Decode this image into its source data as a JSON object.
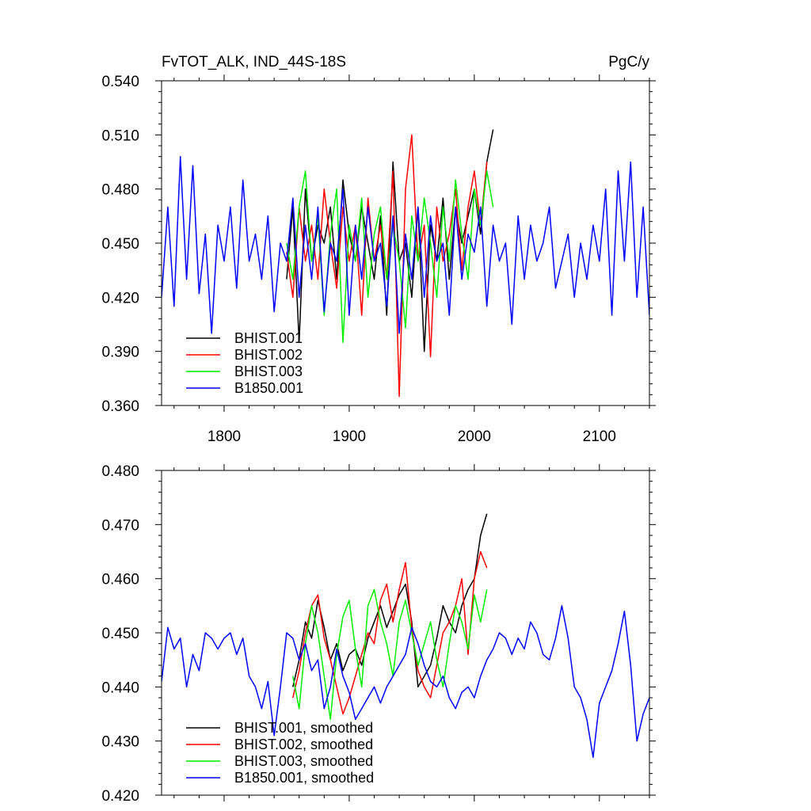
{
  "title_left": "FvTOT_ALK, IND_44S-18S",
  "title_right": "PgC/y",
  "chart_data": [
    {
      "type": "line",
      "xlim": [
        1750,
        2140
      ],
      "ylim": [
        0.36,
        0.54
      ],
      "x_ticks": [
        1800,
        1900,
        2000,
        2100
      ],
      "x_tick_labels": [
        "1800",
        "1900",
        "2000",
        "2100"
      ],
      "y_ticks": [
        0.36,
        0.39,
        0.42,
        0.45,
        0.48,
        0.51,
        0.54
      ],
      "y_tick_labels": [
        "0.360",
        "0.390",
        "0.420",
        "0.450",
        "0.480",
        "0.510",
        "0.540"
      ],
      "legend_position": "bottom-left",
      "series": [
        {
          "name": "BHIST.001",
          "color": "#000000",
          "x": [
            1850,
            1855,
            1860,
            1865,
            1870,
            1875,
            1880,
            1885,
            1890,
            1895,
            1900,
            1905,
            1910,
            1915,
            1920,
            1925,
            1930,
            1935,
            1940,
            1945,
            1950,
            1955,
            1960,
            1965,
            1970,
            1975,
            1980,
            1985,
            1990,
            1995,
            2000,
            2005,
            2010,
            2015
          ],
          "y": [
            0.43,
            0.47,
            0.395,
            0.48,
            0.44,
            0.46,
            0.45,
            0.47,
            0.43,
            0.485,
            0.455,
            0.44,
            0.47,
            0.45,
            0.43,
            0.465,
            0.41,
            0.495,
            0.44,
            0.45,
            0.42,
            0.47,
            0.39,
            0.46,
            0.44,
            0.475,
            0.43,
            0.47,
            0.45,
            0.465,
            0.48,
            0.455,
            0.495,
            0.513
          ]
        },
        {
          "name": "BHIST.002",
          "color": "#ff0000",
          "x": [
            1850,
            1855,
            1860,
            1865,
            1870,
            1875,
            1880,
            1885,
            1890,
            1895,
            1900,
            1905,
            1910,
            1915,
            1920,
            1925,
            1930,
            1935,
            1940,
            1945,
            1950,
            1955,
            1960,
            1965,
            1970,
            1975,
            1980,
            1985,
            1990,
            1995,
            2000,
            2005,
            2010
          ],
          "y": [
            0.445,
            0.42,
            0.47,
            0.44,
            0.46,
            0.43,
            0.48,
            0.45,
            0.425,
            0.47,
            0.44,
            0.46,
            0.41,
            0.475,
            0.44,
            0.46,
            0.43,
            0.49,
            0.365,
            0.48,
            0.51,
            0.44,
            0.46,
            0.387,
            0.47,
            0.44,
            0.455,
            0.48,
            0.435,
            0.47,
            0.49,
            0.46,
            0.495
          ]
        },
        {
          "name": "BHIST.003",
          "color": "#00ee00",
          "x": [
            1850,
            1855,
            1860,
            1865,
            1870,
            1875,
            1880,
            1885,
            1890,
            1895,
            1900,
            1905,
            1910,
            1915,
            1920,
            1925,
            1930,
            1935,
            1940,
            1945,
            1950,
            1955,
            1960,
            1965,
            1970,
            1975,
            1980,
            1985,
            1990,
            1995,
            2000,
            2005,
            2010,
            2015
          ],
          "y": [
            0.45,
            0.43,
            0.47,
            0.49,
            0.44,
            0.465,
            0.41,
            0.455,
            0.48,
            0.395,
            0.46,
            0.44,
            0.475,
            0.42,
            0.455,
            0.47,
            0.43,
            0.46,
            0.44,
            0.403,
            0.465,
            0.44,
            0.475,
            0.45,
            0.42,
            0.47,
            0.44,
            0.485,
            0.455,
            0.43,
            0.48,
            0.46,
            0.49,
            0.47
          ]
        },
        {
          "name": "B1850.001",
          "color": "#0000ff",
          "x": [
            1750,
            1755,
            1760,
            1765,
            1770,
            1775,
            1780,
            1785,
            1790,
            1795,
            1800,
            1805,
            1810,
            1815,
            1820,
            1825,
            1830,
            1835,
            1840,
            1845,
            1850,
            1855,
            1860,
            1865,
            1870,
            1875,
            1880,
            1885,
            1890,
            1895,
            1900,
            1905,
            1910,
            1915,
            1920,
            1925,
            1930,
            1935,
            1940,
            1945,
            1950,
            1955,
            1960,
            1965,
            1970,
            1975,
            1980,
            1985,
            1990,
            1995,
            2000,
            2005,
            2010,
            2015,
            2020,
            2025,
            2030,
            2035,
            2040,
            2045,
            2050,
            2055,
            2060,
            2065,
            2070,
            2075,
            2080,
            2085,
            2090,
            2095,
            2100,
            2105,
            2110,
            2115,
            2120,
            2125,
            2130,
            2135,
            2140
          ],
          "y": [
            0.42,
            0.47,
            0.415,
            0.498,
            0.43,
            0.493,
            0.422,
            0.455,
            0.4,
            0.46,
            0.44,
            0.47,
            0.425,
            0.485,
            0.44,
            0.455,
            0.43,
            0.465,
            0.412,
            0.45,
            0.44,
            0.475,
            0.42,
            0.46,
            0.43,
            0.47,
            0.412,
            0.45,
            0.44,
            0.48,
            0.41,
            0.46,
            0.43,
            0.47,
            0.44,
            0.45,
            0.415,
            0.465,
            0.4,
            0.455,
            0.43,
            0.47,
            0.42,
            0.465,
            0.44,
            0.45,
            0.41,
            0.47,
            0.43,
            0.455,
            0.445,
            0.47,
            0.415,
            0.46,
            0.44,
            0.45,
            0.405,
            0.465,
            0.43,
            0.46,
            0.44,
            0.45,
            0.47,
            0.425,
            0.44,
            0.455,
            0.42,
            0.45,
            0.43,
            0.46,
            0.44,
            0.48,
            0.41,
            0.49,
            0.44,
            0.495,
            0.42,
            0.47,
            0.41
          ]
        }
      ]
    },
    {
      "type": "line",
      "xlim": [
        1750,
        2140
      ],
      "ylim": [
        0.42,
        0.48
      ],
      "x_ticks": [
        1800,
        1900,
        2000,
        2100
      ],
      "x_tick_labels": [],
      "y_ticks": [
        0.42,
        0.43,
        0.44,
        0.45,
        0.46,
        0.47,
        0.48
      ],
      "y_tick_labels": [
        "0.420",
        "0.430",
        "0.440",
        "0.450",
        "0.460",
        "0.470",
        "0.480"
      ],
      "legend_position": "bottom-left",
      "series": [
        {
          "name": "BHIST.001, smoothed",
          "color": "#000000",
          "x": [
            1855,
            1860,
            1865,
            1870,
            1875,
            1880,
            1885,
            1890,
            1895,
            1900,
            1905,
            1910,
            1915,
            1920,
            1925,
            1930,
            1935,
            1940,
            1945,
            1950,
            1955,
            1960,
            1965,
            1970,
            1975,
            1980,
            1985,
            1990,
            1995,
            2000,
            2005,
            2010
          ],
          "y": [
            0.44,
            0.445,
            0.452,
            0.449,
            0.456,
            0.451,
            0.445,
            0.448,
            0.443,
            0.446,
            0.447,
            0.444,
            0.449,
            0.452,
            0.455,
            0.451,
            0.454,
            0.457,
            0.459,
            0.452,
            0.44,
            0.442,
            0.444,
            0.449,
            0.455,
            0.452,
            0.45,
            0.455,
            0.458,
            0.46,
            0.468,
            0.472
          ]
        },
        {
          "name": "BHIST.002, smoothed",
          "color": "#ff0000",
          "x": [
            1855,
            1860,
            1865,
            1870,
            1875,
            1880,
            1885,
            1890,
            1895,
            1900,
            1905,
            1910,
            1915,
            1920,
            1925,
            1930,
            1935,
            1940,
            1945,
            1950,
            1955,
            1960,
            1965,
            1970,
            1975,
            1980,
            1985,
            1990,
            1995,
            2000,
            2005,
            2010
          ],
          "y": [
            0.438,
            0.443,
            0.45,
            0.455,
            0.457,
            0.449,
            0.445,
            0.44,
            0.435,
            0.438,
            0.442,
            0.446,
            0.45,
            0.448,
            0.456,
            0.459,
            0.452,
            0.458,
            0.463,
            0.451,
            0.443,
            0.44,
            0.438,
            0.444,
            0.45,
            0.452,
            0.455,
            0.46,
            0.446,
            0.46,
            0.465,
            0.462
          ]
        },
        {
          "name": "BHIST.003, smoothed",
          "color": "#00ee00",
          "x": [
            1855,
            1860,
            1865,
            1870,
            1875,
            1880,
            1885,
            1890,
            1895,
            1900,
            1905,
            1910,
            1915,
            1920,
            1925,
            1930,
            1935,
            1940,
            1945,
            1950,
            1955,
            1960,
            1965,
            1970,
            1975,
            1980,
            1985,
            1990,
            1995,
            2000,
            2005,
            2010
          ],
          "y": [
            0.442,
            0.436,
            0.448,
            0.455,
            0.45,
            0.442,
            0.434,
            0.446,
            0.453,
            0.456,
            0.447,
            0.44,
            0.455,
            0.458,
            0.452,
            0.448,
            0.442,
            0.452,
            0.456,
            0.45,
            0.444,
            0.448,
            0.452,
            0.445,
            0.44,
            0.448,
            0.455,
            0.452,
            0.447,
            0.457,
            0.452,
            0.458
          ]
        },
        {
          "name": "B1850.001, smoothed",
          "color": "#0000ff",
          "x": [
            1750,
            1755,
            1760,
            1765,
            1770,
            1775,
            1780,
            1785,
            1790,
            1795,
            1800,
            1805,
            1810,
            1815,
            1820,
            1825,
            1830,
            1835,
            1840,
            1845,
            1850,
            1855,
            1860,
            1865,
            1870,
            1875,
            1880,
            1885,
            1890,
            1895,
            1900,
            1905,
            1910,
            1915,
            1920,
            1925,
            1930,
            1935,
            1940,
            1945,
            1950,
            1955,
            1960,
            1965,
            1970,
            1975,
            1980,
            1985,
            1990,
            1995,
            2000,
            2005,
            2010,
            2015,
            2020,
            2025,
            2030,
            2035,
            2040,
            2045,
            2050,
            2055,
            2060,
            2065,
            2070,
            2075,
            2080,
            2085,
            2090,
            2095,
            2100,
            2105,
            2110,
            2115,
            2120,
            2125,
            2130,
            2135,
            2140
          ],
          "y": [
            0.441,
            0.451,
            0.447,
            0.449,
            0.44,
            0.446,
            0.443,
            0.45,
            0.449,
            0.447,
            0.449,
            0.45,
            0.446,
            0.449,
            0.442,
            0.44,
            0.436,
            0.441,
            0.431,
            0.44,
            0.45,
            0.449,
            0.445,
            0.448,
            0.443,
            0.445,
            0.436,
            0.44,
            0.447,
            0.442,
            0.439,
            0.434,
            0.436,
            0.438,
            0.44,
            0.437,
            0.44,
            0.442,
            0.444,
            0.446,
            0.451,
            0.448,
            0.444,
            0.441,
            0.44,
            0.442,
            0.438,
            0.436,
            0.439,
            0.44,
            0.438,
            0.442,
            0.445,
            0.447,
            0.45,
            0.449,
            0.446,
            0.449,
            0.447,
            0.452,
            0.45,
            0.446,
            0.445,
            0.449,
            0.455,
            0.449,
            0.44,
            0.438,
            0.434,
            0.427,
            0.437,
            0.44,
            0.443,
            0.448,
            0.454,
            0.444,
            0.43,
            0.435,
            0.438
          ]
        }
      ]
    }
  ]
}
